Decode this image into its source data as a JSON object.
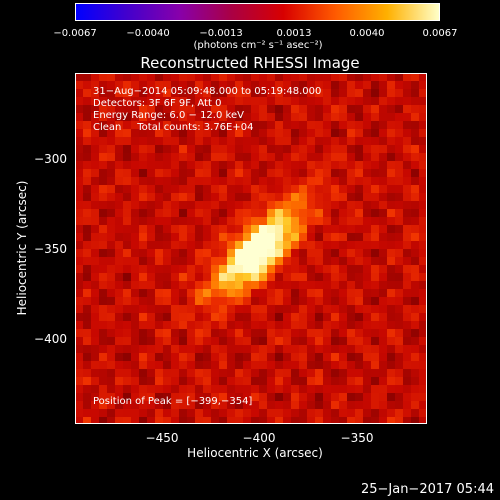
{
  "chart_data": {
    "type": "heatmap",
    "title": "Reconstructed RHESSI Image",
    "xlabel": "Heliocentric X (arcsec)",
    "ylabel": "Heliocentric Y (arcsec)",
    "xlim": [
      -492,
      -312
    ],
    "ylim": [
      -442,
      -263
    ],
    "xticks": [
      -450,
      -400,
      -350
    ],
    "xtick_labels": [
      "−450",
      "−400",
      "−350"
    ],
    "yticks": [
      -300,
      -350,
      -400
    ],
    "ytick_labels": [
      "−300",
      "−350",
      "−400"
    ],
    "colorbar": {
      "min": -0.0067,
      "max": 0.0067,
      "ticks": [
        "−0.0067",
        "−0.0040",
        "−0.0013",
        "0.0013",
        "0.0040",
        "0.0067"
      ],
      "unit": "(photons cm⁻² s⁻¹ asec⁻²)",
      "colormap": [
        "#0000ff",
        "#4400cc",
        "#8800aa",
        "#aa0044",
        "#d80000",
        "#ff5a00",
        "#ffb000",
        "#ffffc8"
      ]
    },
    "peak_position": [
      -399,
      -354
    ],
    "info_lines": [
      "31−Aug−2014 05:09:48.000 to 05:19:48.000",
      "Detectors: 3F 6F 9F, Att 0",
      "Energy Range: 6.0 − 12.0 keV",
      "Clean     Total counts: 3.76E+04"
    ],
    "peak_label": "Position of Peak = [−399,−354]",
    "timestamp": "25−Jan−2017 05:44"
  }
}
